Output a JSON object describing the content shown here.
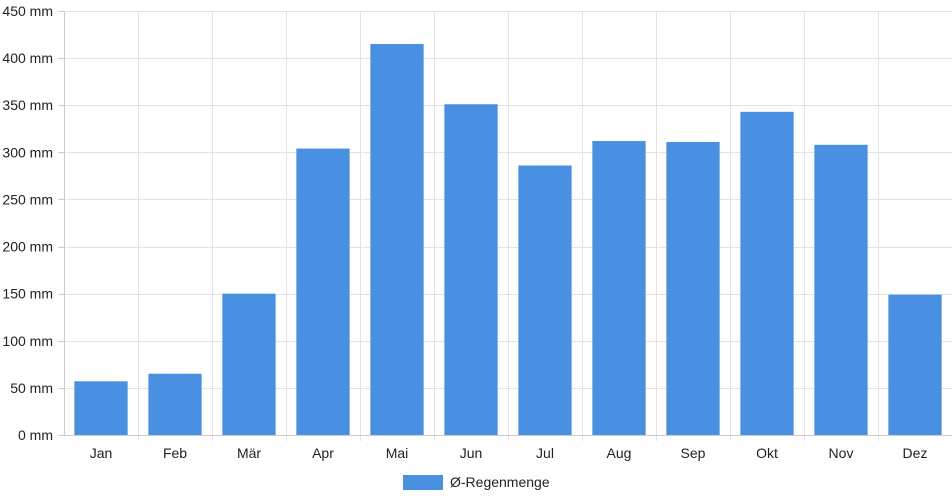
{
  "chart_data": {
    "type": "bar",
    "categories": [
      "Jan",
      "Feb",
      "Mär",
      "Apr",
      "Mai",
      "Jun",
      "Jul",
      "Aug",
      "Sep",
      "Okt",
      "Nov",
      "Dez"
    ],
    "series": [
      {
        "name": "Ø-Regenmenge",
        "values": [
          57,
          65,
          150,
          304,
          415,
          351,
          286,
          312,
          311,
          343,
          308,
          149
        ],
        "color": "#4a90e2"
      }
    ],
    "y_unit": "mm",
    "ylim": [
      0,
      450
    ],
    "y_ticks": [
      0,
      50,
      100,
      150,
      200,
      250,
      300,
      350,
      400,
      450
    ],
    "grid": true,
    "legend_position": "bottom"
  },
  "legend": {
    "label": "Ø-Regenmenge"
  }
}
